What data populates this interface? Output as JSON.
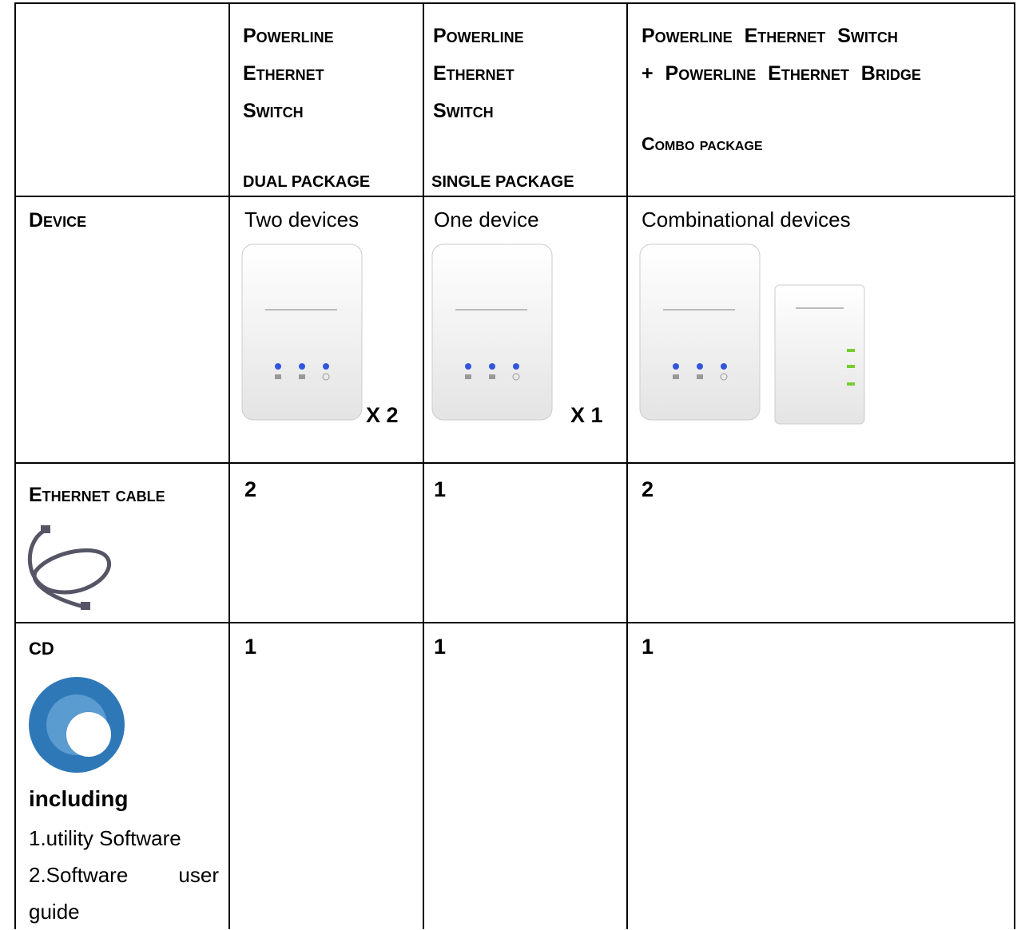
{
  "table": {
    "header": [
      {
        "title_lines": [
          "Powerline",
          "Ethernet",
          "Switch"
        ],
        "package": "DUAL PACKAGE"
      },
      {
        "title_lines": [
          "Powerline",
          "Ethernet",
          "Switch"
        ],
        "package": "SINGLE PACKAGE"
      },
      {
        "title_lines": [
          "Powerline Ethernet Switch",
          "+ Powerline Ethernet Bridge"
        ],
        "package": "Combo package"
      }
    ],
    "rows": {
      "device": {
        "label": "Device",
        "cells": [
          {
            "text": "Two devices",
            "multiplier": "X 2"
          },
          {
            "text": "One device",
            "multiplier": "X 1"
          },
          {
            "text": "Combinational devices"
          }
        ]
      },
      "ethernet": {
        "label": "Ethernet cable",
        "cells": [
          "2",
          "1",
          "2"
        ]
      },
      "cd": {
        "label": "CD",
        "including": "including",
        "items": [
          "1.utility Software",
          "2.Software user guide"
        ],
        "cells": [
          "1",
          "1",
          "1"
        ]
      }
    }
  }
}
